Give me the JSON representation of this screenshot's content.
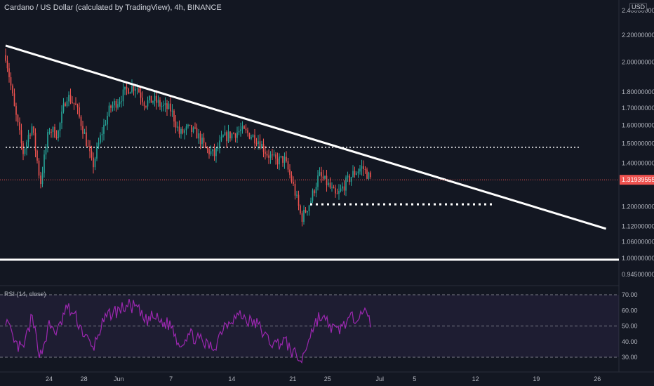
{
  "header": {
    "title": "Cardano / US Dollar (calculated by TradingView), 4h, BINANCE",
    "currency": "USD"
  },
  "chart_data": [
    {
      "type": "candlestick",
      "title": "Cardano / US Dollar (calculated by TradingView), 4h, BINANCE",
      "y_scale": "log",
      "ylim": [
        0.92,
        2.45
      ],
      "y_ticks": [
        "2.40000000",
        "2.20000000",
        "2.00000000",
        "1.80000000",
        "1.70000000",
        "1.60000000",
        "1.50000000",
        "1.40000000",
        "1.20000000",
        "1.12000000",
        "1.06000000",
        "1.00000000",
        "0.94500000"
      ],
      "x_ticks": [
        "24",
        "28",
        "Jun",
        "7",
        "14",
        "21",
        "25",
        "Jul",
        "5",
        "12",
        "19",
        "26"
      ],
      "last_price": "1.31939555",
      "price_path": [
        [
          "2021-05-19",
          2.05
        ],
        [
          "2021-05-20",
          1.7
        ],
        [
          "2021-05-21",
          1.45
        ],
        [
          "2021-05-22",
          1.6
        ],
        [
          "2021-05-23",
          1.3
        ],
        [
          "2021-05-24",
          1.58
        ],
        [
          "2021-05-25",
          1.55
        ],
        [
          "2021-05-26",
          1.78
        ],
        [
          "2021-05-27",
          1.72
        ],
        [
          "2021-05-28",
          1.56
        ],
        [
          "2021-05-29",
          1.38
        ],
        [
          "2021-05-30",
          1.55
        ],
        [
          "2021-05-31",
          1.7
        ],
        [
          "2021-06-01",
          1.75
        ],
        [
          "2021-06-02",
          1.82
        ],
        [
          "2021-06-03",
          1.84
        ],
        [
          "2021-06-04",
          1.73
        ],
        [
          "2021-06-05",
          1.75
        ],
        [
          "2021-06-06",
          1.71
        ],
        [
          "2021-06-07",
          1.69
        ],
        [
          "2021-06-08",
          1.55
        ],
        [
          "2021-06-09",
          1.58
        ],
        [
          "2021-06-10",
          1.55
        ],
        [
          "2021-06-11",
          1.47
        ],
        [
          "2021-06-12",
          1.44
        ],
        [
          "2021-06-13",
          1.53
        ],
        [
          "2021-06-14",
          1.55
        ],
        [
          "2021-06-15",
          1.57
        ],
        [
          "2021-06-16",
          1.55
        ],
        [
          "2021-06-17",
          1.52
        ],
        [
          "2021-06-18",
          1.45
        ],
        [
          "2021-06-19",
          1.41
        ],
        [
          "2021-06-20",
          1.42
        ],
        [
          "2021-06-21",
          1.3
        ],
        [
          "2021-06-22",
          1.15
        ],
        [
          "2021-06-23",
          1.22
        ],
        [
          "2021-06-24",
          1.34
        ],
        [
          "2021-06-25",
          1.3
        ],
        [
          "2021-06-26",
          1.24
        ],
        [
          "2021-06-27",
          1.3
        ],
        [
          "2021-06-28",
          1.35
        ],
        [
          "2021-06-29",
          1.38
        ],
        [
          "2021-06-30",
          1.32
        ]
      ],
      "drawings": [
        {
          "kind": "descending-trendline",
          "from": [
            "2021-05-19",
            2.12
          ],
          "to": [
            "2021-07-27",
            1.11
          ]
        },
        {
          "kind": "horizontal-support",
          "price": 0.995
        },
        {
          "kind": "dotted-horizontal",
          "price": 1.48,
          "from": "2021-05-19",
          "to": "2021-07-24"
        },
        {
          "kind": "dotted-horizontal",
          "price": 1.21,
          "from": "2021-06-23",
          "to": "2021-07-14"
        },
        {
          "kind": "last-price-line",
          "price": 1.3194
        }
      ]
    },
    {
      "type": "line",
      "title": "RSI (14, close)",
      "ylim": [
        25,
        75
      ],
      "y_ticks": [
        "70.00",
        "60.00",
        "50.00",
        "40.00",
        "30.00"
      ],
      "bands": [
        70,
        50,
        30
      ],
      "series": [
        {
          "values": [
            [
              "2021-05-19",
              55
            ],
            [
              "2021-05-20",
              38
            ],
            [
              "2021-05-21",
              35
            ],
            [
              "2021-05-22",
              55
            ],
            [
              "2021-05-23",
              31
            ],
            [
              "2021-05-24",
              50
            ],
            [
              "2021-05-25",
              46
            ],
            [
              "2021-05-26",
              62
            ],
            [
              "2021-05-27",
              56
            ],
            [
              "2021-05-28",
              45
            ],
            [
              "2021-05-29",
              35
            ],
            [
              "2021-05-30",
              50
            ],
            [
              "2021-05-31",
              58
            ],
            [
              "2021-06-01",
              60
            ],
            [
              "2021-06-02",
              63
            ],
            [
              "2021-06-03",
              62
            ],
            [
              "2021-06-04",
              53
            ],
            [
              "2021-06-05",
              56
            ],
            [
              "2021-06-06",
              52
            ],
            [
              "2021-06-07",
              51
            ],
            [
              "2021-06-08",
              38
            ],
            [
              "2021-06-09",
              45
            ],
            [
              "2021-06-10",
              42
            ],
            [
              "2021-06-11",
              38
            ],
            [
              "2021-06-12",
              36
            ],
            [
              "2021-06-13",
              50
            ],
            [
              "2021-06-14",
              55
            ],
            [
              "2021-06-15",
              57
            ],
            [
              "2021-06-16",
              53
            ],
            [
              "2021-06-17",
              51
            ],
            [
              "2021-06-18",
              42
            ],
            [
              "2021-06-19",
              38
            ],
            [
              "2021-06-20",
              41
            ],
            [
              "2021-06-21",
              33
            ],
            [
              "2021-06-22",
              27
            ],
            [
              "2021-06-23",
              45
            ],
            [
              "2021-06-24",
              56
            ],
            [
              "2021-06-25",
              52
            ],
            [
              "2021-06-26",
              46
            ],
            [
              "2021-06-27",
              52
            ],
            [
              "2021-06-28",
              55
            ],
            [
              "2021-06-29",
              61
            ],
            [
              "2021-06-30",
              51
            ]
          ]
        }
      ]
    }
  ],
  "colors": {
    "background": "#131722",
    "up": "#26a69a",
    "down": "#ef5350",
    "rsi_line": "#9c27b0",
    "rsi_band": "#7e57c2",
    "drawing": "#ffffff",
    "last_price_label": "#ef5350"
  },
  "rsi_label": "RSI (14, close)"
}
